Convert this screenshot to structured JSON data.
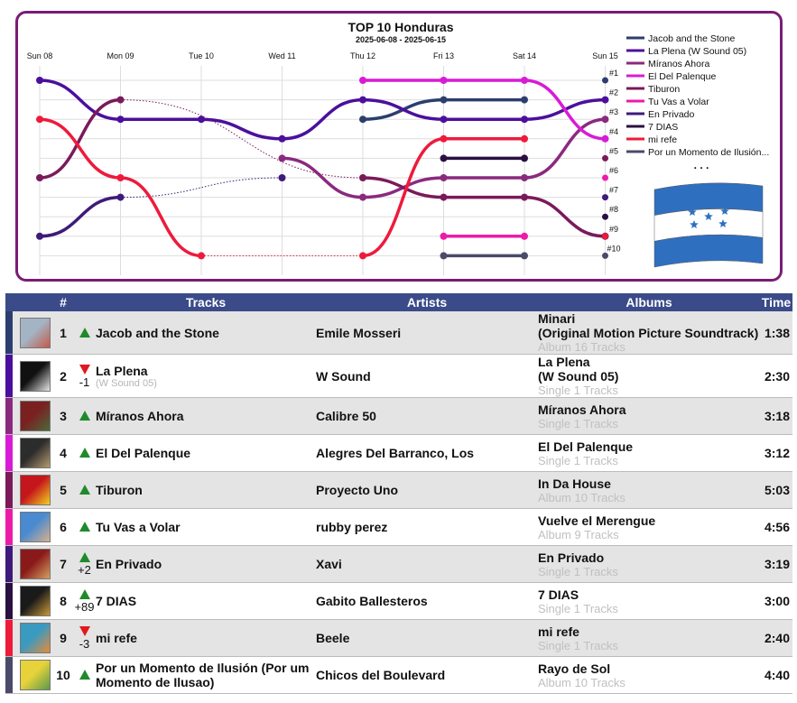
{
  "chart_data": {
    "type": "line",
    "title": "TOP 10 Honduras",
    "subtitle": "2025-06-08 - 2025-06-15",
    "x": [
      "Sun 08",
      "Mon 09",
      "Tue 10",
      "Wed 11",
      "Thu 12",
      "Fri 13",
      "Sat 14",
      "Sun 15"
    ],
    "y_ticks": [
      "#1",
      "#2",
      "#3",
      "#4",
      "#5",
      "#6",
      "#7",
      "#8",
      "#9",
      "#10"
    ],
    "y_axis": "rank (1 at top, 10 at bottom)",
    "legend_more": ". . .",
    "series": [
      {
        "name": "Jacob and the Stone",
        "color": "#2c3e6e",
        "ranks": [
          null,
          null,
          null,
          null,
          3,
          2,
          2,
          null
        ],
        "today": 1
      },
      {
        "name": "La Plena (W Sound 05)",
        "color": "#4b0f9e",
        "ranks": [
          1,
          3,
          3,
          4,
          2,
          3,
          3,
          2
        ],
        "today": 2
      },
      {
        "name": "Míranos Ahora",
        "color": "#8a2a7f",
        "ranks": [
          null,
          null,
          null,
          5,
          7,
          6,
          6,
          3
        ],
        "today": 3
      },
      {
        "name": "El Del Palenque",
        "color": "#d81bd6",
        "ranks": [
          null,
          null,
          null,
          null,
          1,
          1,
          1,
          4
        ],
        "today": 4
      },
      {
        "name": "Tiburon",
        "color": "#7a1a5a",
        "ranks": [
          6,
          2,
          null,
          null,
          6,
          7,
          7,
          9
        ],
        "today": 5
      },
      {
        "name": "Tu Vas a Volar",
        "color": "#ec1ca8",
        "ranks": [
          null,
          null,
          null,
          null,
          null,
          9,
          9,
          null
        ],
        "today": 6
      },
      {
        "name": "En Privado",
        "color": "#3d1b7a",
        "ranks": [
          9,
          7,
          null,
          6,
          null,
          null,
          null,
          null
        ],
        "today": 7
      },
      {
        "name": "7 DIAS",
        "color": "#2a1040",
        "ranks": [
          null,
          null,
          null,
          null,
          null,
          5,
          5,
          null
        ],
        "today": 8
      },
      {
        "name": "mi refe",
        "color": "#ee1a3c",
        "ranks": [
          3,
          6,
          10,
          null,
          10,
          4,
          4,
          null
        ],
        "today": 9
      },
      {
        "name": "Por un Momento de Ilusión...",
        "color": "#4a4a6a",
        "ranks": [
          null,
          null,
          null,
          null,
          null,
          10,
          10,
          null
        ],
        "today": 10
      }
    ]
  },
  "table": {
    "headers": {
      "rank": "#",
      "tracks": "Tracks",
      "artists": "Artists",
      "albums": "Albums",
      "time": "Time"
    },
    "rows": [
      {
        "rank": "1",
        "dir": "up",
        "delta": "",
        "track": "Jacob and the Stone",
        "track_sub": "",
        "artist": "Emile Mosseri",
        "album": "Minari\n(Original Motion Picture Soundtrack)",
        "album_sub": "Album 16 Tracks",
        "time": "1:38",
        "color": "#2c3e6e",
        "thumb": [
          "#a3b5c5",
          "#c45a4a"
        ]
      },
      {
        "rank": "2",
        "dir": "down",
        "delta": "-1",
        "track": "La Plena",
        "track_sub": "(W Sound 05)",
        "artist": "W Sound",
        "album": "La Plena\n(W Sound 05)",
        "album_sub": "Single 1 Tracks",
        "time": "2:30",
        "color": "#4b0f9e",
        "thumb": [
          "#111111",
          "#e6e6e6"
        ]
      },
      {
        "rank": "3",
        "dir": "up",
        "delta": "",
        "track": "Míranos Ahora",
        "track_sub": "",
        "artist": "Calibre 50",
        "album": "Míranos Ahora",
        "album_sub": "Single 1 Tracks",
        "time": "3:18",
        "color": "#8a2a7f",
        "thumb": [
          "#7a2020",
          "#4a6a3a"
        ]
      },
      {
        "rank": "4",
        "dir": "up",
        "delta": "",
        "track": "El Del Palenque",
        "track_sub": "",
        "artist": "Alegres Del Barranco, Los",
        "album": "El Del Palenque",
        "album_sub": "Single 1 Tracks",
        "time": "3:12",
        "color": "#d81bd6",
        "thumb": [
          "#2c2c2c",
          "#b59a70"
        ]
      },
      {
        "rank": "5",
        "dir": "up",
        "delta": "",
        "track": "Tiburon",
        "track_sub": "",
        "artist": "Proyecto Uno",
        "album": "In Da House",
        "album_sub": "Album 10 Tracks",
        "time": "5:03",
        "color": "#7a1a5a",
        "thumb": [
          "#c4161c",
          "#f2d21e"
        ]
      },
      {
        "rank": "6",
        "dir": "up",
        "delta": "",
        "track": "Tu Vas a Volar",
        "track_sub": "",
        "artist": "rubby perez",
        "album": "Vuelve el Merengue",
        "album_sub": "Album 9 Tracks",
        "time": "4:56",
        "color": "#ec1ca8",
        "thumb": [
          "#4a8ad0",
          "#d9b08c"
        ]
      },
      {
        "rank": "7",
        "dir": "up",
        "delta": "+2",
        "track": "En Privado",
        "track_sub": "",
        "artist": "Xavi",
        "album": "En Privado",
        "album_sub": "Single 1 Tracks",
        "time": "3:19",
        "color": "#3d1b7a",
        "thumb": [
          "#8a1a1a",
          "#d4a060"
        ]
      },
      {
        "rank": "8",
        "dir": "up",
        "delta": "+89",
        "track": "7 DIAS",
        "track_sub": "",
        "artist": "Gabito Ballesteros",
        "album": "7 DIAS",
        "album_sub": "Single 1 Tracks",
        "time": "3:00",
        "color": "#2a1040",
        "thumb": [
          "#1a1a1a",
          "#c89a3a"
        ]
      },
      {
        "rank": "9",
        "dir": "down",
        "delta": "-3",
        "track": "mi refe",
        "track_sub": "",
        "artist": "Beele",
        "album": "mi refe",
        "album_sub": "Single 1 Tracks",
        "time": "2:40",
        "color": "#ee1a3c",
        "thumb": [
          "#3a9ac0",
          "#e88a3a"
        ]
      },
      {
        "rank": "10",
        "dir": "up",
        "delta": "",
        "track": "Por un Momento de Ilusión (Por um Momento de Ilusao)",
        "track_sub": "",
        "artist": "Chicos del Boulevard",
        "album": "Rayo de Sol",
        "album_sub": "Album 10 Tracks",
        "time": "4:40",
        "color": "#4a4a6a",
        "thumb": [
          "#e8d23a",
          "#5a9a4a"
        ]
      }
    ]
  },
  "flag": {
    "name": "honduras-flag-icon",
    "blue": "#2f6fc0",
    "white": "#ffffff",
    "star": "#2f6fc0"
  }
}
